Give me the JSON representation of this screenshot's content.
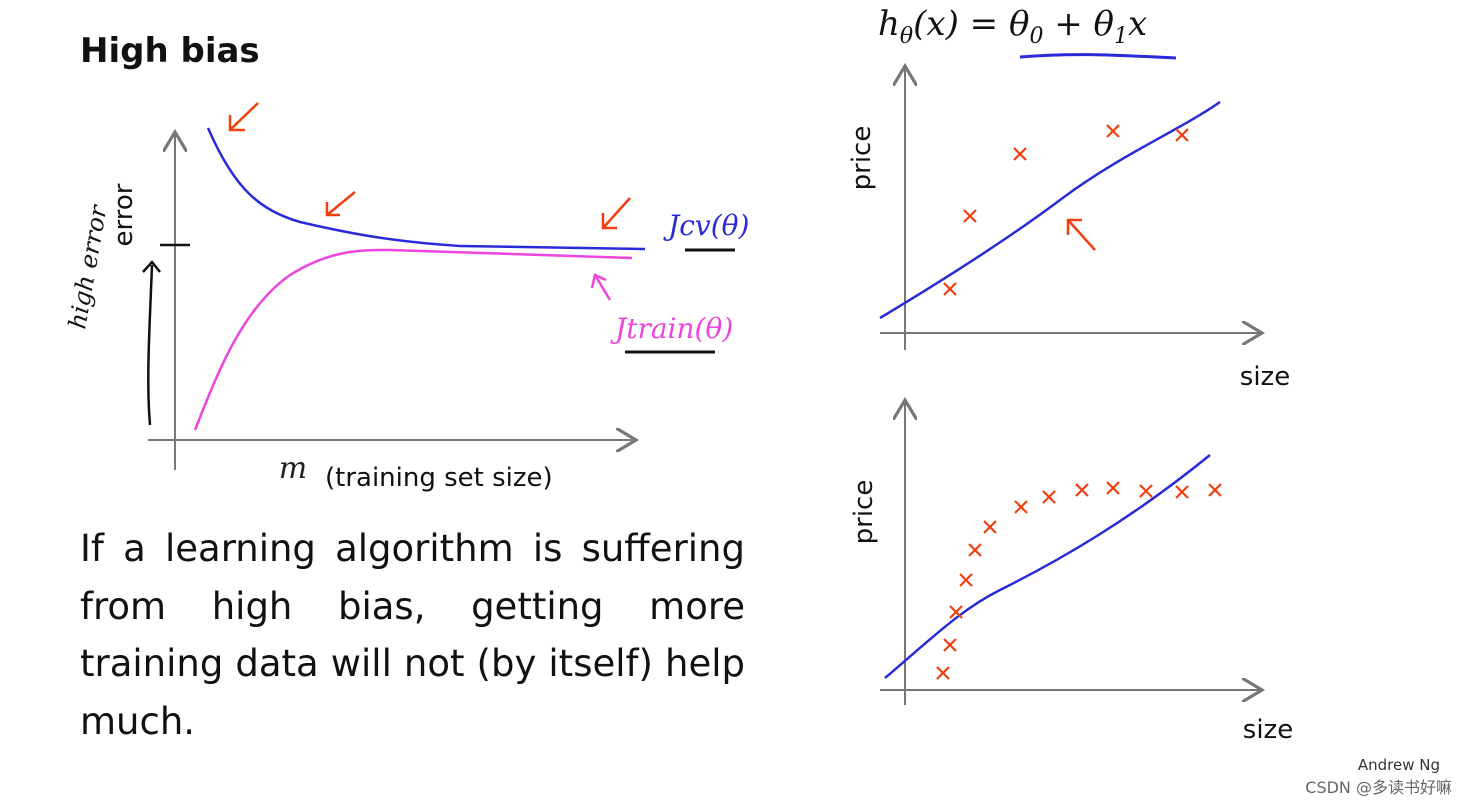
{
  "title": "High bias",
  "left_chart": {
    "y_label": "error",
    "x_symbol": "m",
    "x_label": "(training set size)",
    "cv_label": "Jcv(θ)",
    "train_label": "Jtrain(θ)",
    "note": "high error"
  },
  "formula": [
    "h",
    "θ",
    "(x) = θ",
    "0",
    " + θ",
    "1",
    "x"
  ],
  "top_plot": {
    "y_label": "price",
    "x_label": "size"
  },
  "bottom_plot": {
    "y_label": "price",
    "x_label": "size"
  },
  "body_text": "If a learning algorithm is suffering from high bias, getting more training data will not (by itself) help much.",
  "author": "Andrew Ng",
  "watermark": "CSDN @多读书好嘛"
}
